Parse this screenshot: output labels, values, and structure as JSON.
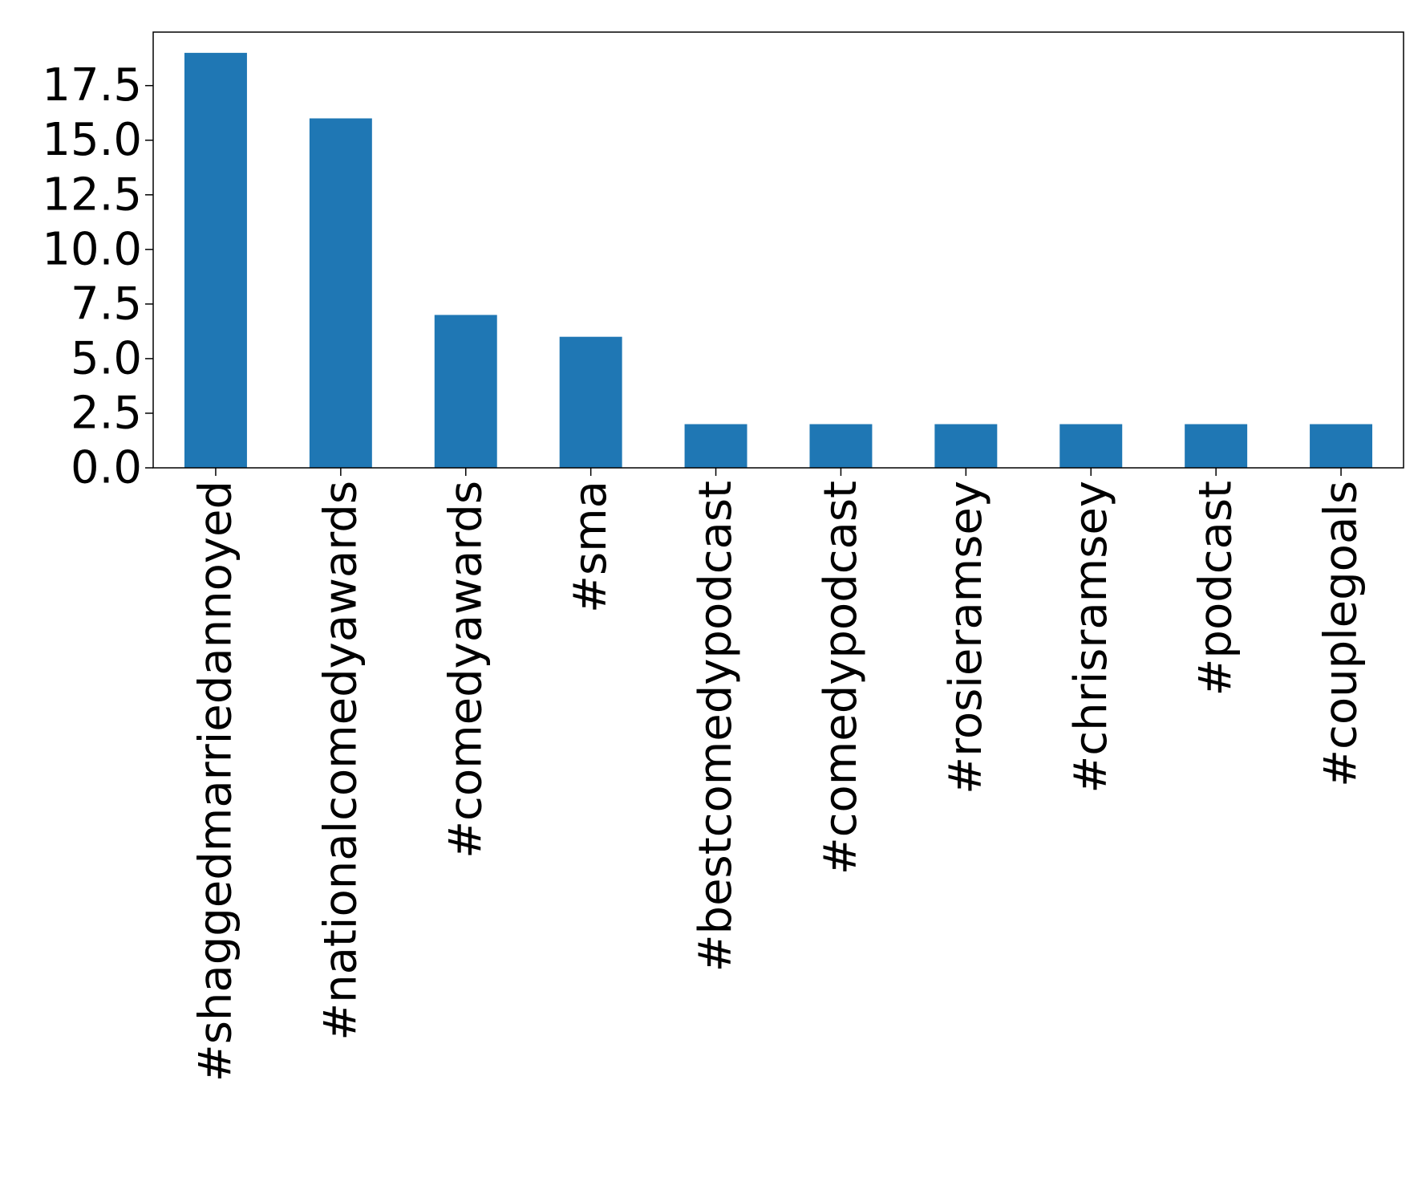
{
  "chart_data": {
    "type": "bar",
    "title": "",
    "xlabel": "",
    "ylabel": "",
    "categories": [
      "#shaggedmarriedannoyed",
      "#nationalcomedyawards",
      "#comedyawards",
      "#sma",
      "#bestcomedypodcast",
      "#comedypodcast",
      "#rosieramsey",
      "#chrisramsey",
      "#podcast",
      "#couplegoals"
    ],
    "values": [
      19,
      16,
      7,
      6,
      2,
      2,
      2,
      2,
      2,
      2
    ],
    "ylim": [
      0,
      19.95
    ],
    "yticks": [
      0.0,
      2.5,
      5.0,
      7.5,
      10.0,
      12.5,
      15.0,
      17.5
    ],
    "ytick_labels": [
      "0.0",
      "2.5",
      "5.0",
      "7.5",
      "10.0",
      "12.5",
      "15.0",
      "17.5"
    ],
    "bar_color": "#1f77b4",
    "grid": false,
    "legend": "none"
  }
}
